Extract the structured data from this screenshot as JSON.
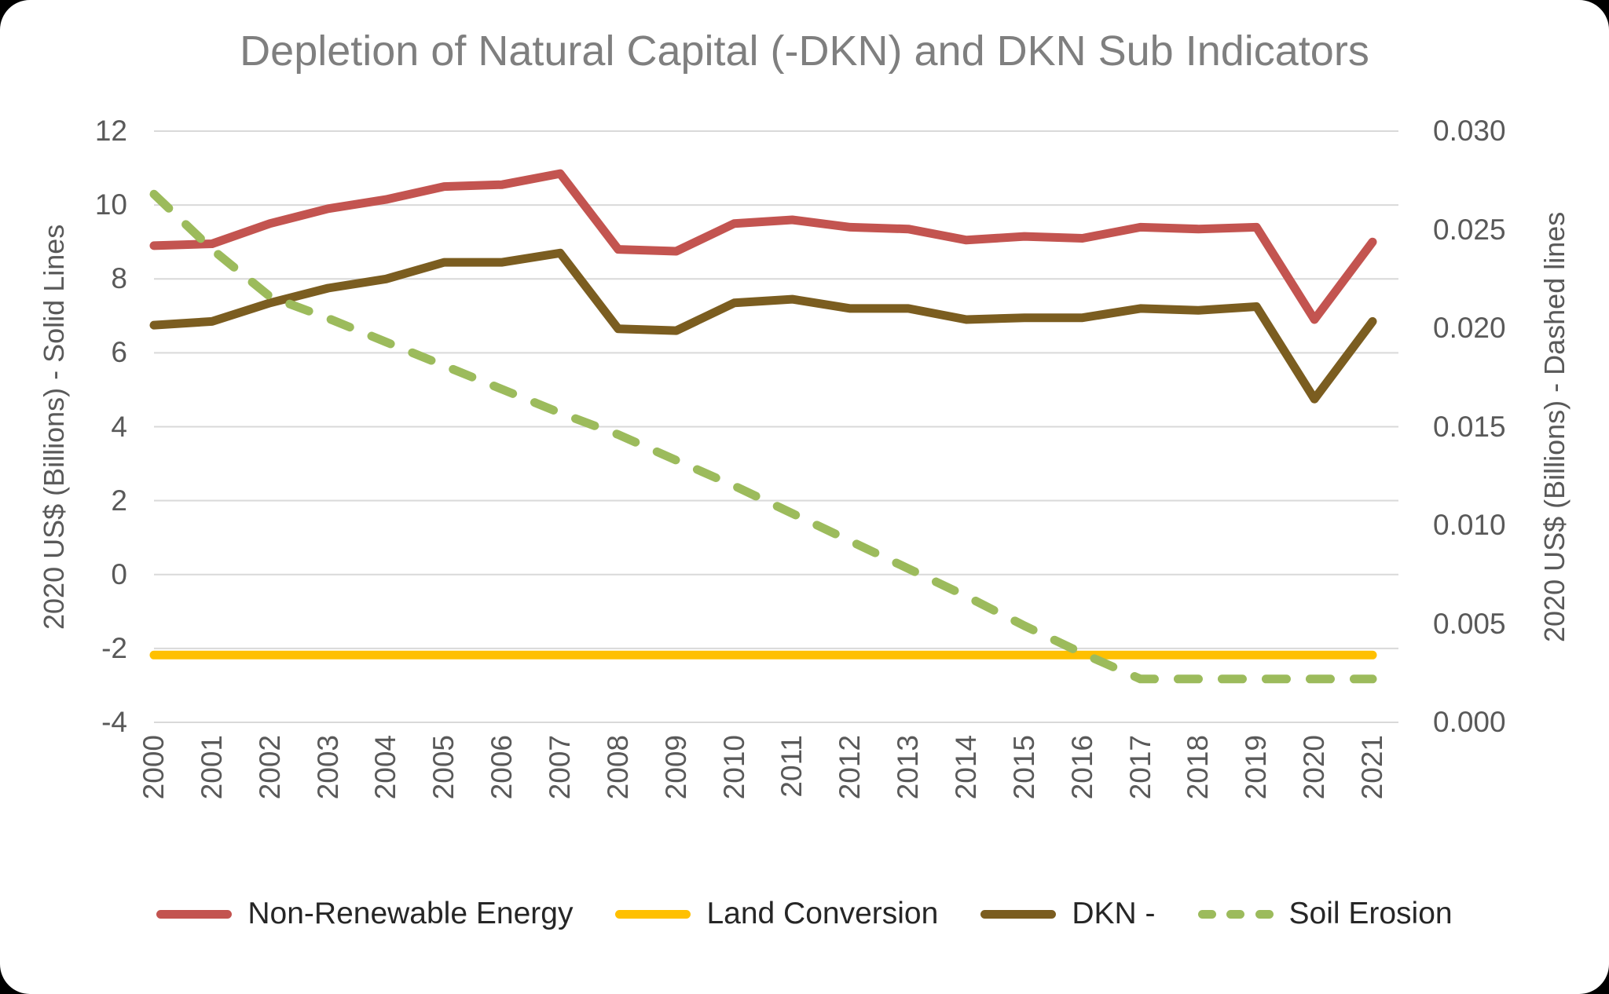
{
  "chart_data": {
    "type": "line",
    "title": "Depletion of Natural Capital (-DKN) and DKN Sub Indicators",
    "x": [
      "2000",
      "2001",
      "2002",
      "2003",
      "2004",
      "2005",
      "2006",
      "2007",
      "2008",
      "2009",
      "2010",
      "2011",
      "2012",
      "2013",
      "2014",
      "2015",
      "2016",
      "2017",
      "2018",
      "2019",
      "2020",
      "2021"
    ],
    "left_axis": {
      "label": "2020 US$ (Billions) - Solid Lines",
      "ticks": [
        12,
        10,
        8,
        6,
        4,
        2,
        0,
        -2,
        -4
      ],
      "range": [
        -4,
        12
      ]
    },
    "right_axis": {
      "label": "2020 US$ (Billions) - Dashed lines",
      "ticks": [
        "0.030",
        "0.025",
        "0.020",
        "0.015",
        "0.010",
        "0.005",
        "0.000"
      ],
      "range": [
        0,
        0.03
      ]
    },
    "grid": true,
    "gridline_color": "#d9d9d9",
    "legend_position": "bottom",
    "colors": {
      "title_text": "#7f7f7f",
      "tick_text": "#595959",
      "legend_text": "#262626"
    },
    "series": [
      {
        "name": "Non-Renewable Energy",
        "axis": "left",
        "style": "solid",
        "color": "#c35450",
        "values": [
          8.9,
          8.95,
          9.5,
          9.9,
          10.15,
          10.5,
          10.55,
          10.85,
          8.8,
          8.75,
          9.5,
          9.6,
          9.4,
          9.35,
          9.05,
          9.15,
          9.1,
          9.4,
          9.35,
          9.4,
          6.9,
          9.0
        ]
      },
      {
        "name": "Land Conversion",
        "axis": "left",
        "style": "solid",
        "color": "#ffc000",
        "values": [
          -2.18,
          -2.18,
          -2.18,
          -2.18,
          -2.18,
          -2.18,
          -2.18,
          -2.18,
          -2.18,
          -2.18,
          -2.18,
          -2.18,
          -2.18,
          -2.18,
          -2.18,
          -2.18,
          -2.18,
          -2.18,
          -2.18,
          -2.18,
          -2.18,
          -2.18
        ]
      },
      {
        "name": "DKN -",
        "axis": "left",
        "style": "solid",
        "color": "#7b5d20",
        "values": [
          6.75,
          6.85,
          7.35,
          7.75,
          8.0,
          8.45,
          8.45,
          8.7,
          6.65,
          6.6,
          7.35,
          7.45,
          7.2,
          7.2,
          6.9,
          6.95,
          6.95,
          7.2,
          7.15,
          7.25,
          4.75,
          6.85
        ]
      },
      {
        "name": "Soil Erosion",
        "axis": "right",
        "style": "dashed",
        "color": "#9cbb5c",
        "values": [
          0.0268,
          0.024,
          0.0216,
          0.0205,
          0.0193,
          0.0181,
          0.0169,
          0.0157,
          0.0146,
          0.0133,
          0.012,
          0.0106,
          0.0092,
          0.0078,
          0.0064,
          0.0049,
          0.0035,
          0.0022,
          0.0022,
          0.0022,
          0.0022,
          0.0022
        ]
      }
    ]
  }
}
